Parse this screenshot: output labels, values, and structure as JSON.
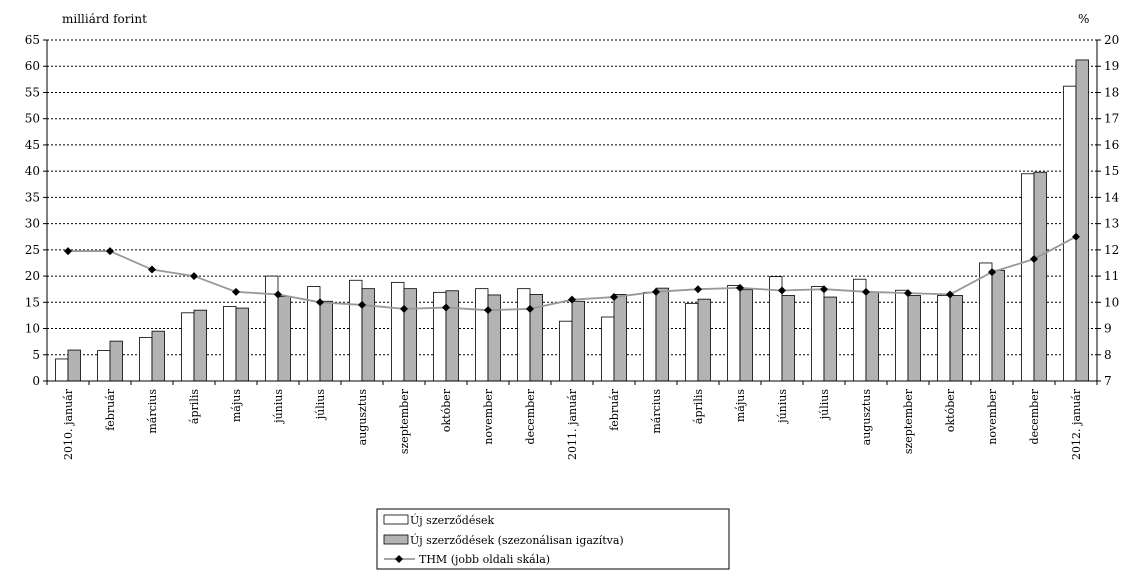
{
  "chart_data": {
    "type": "bar",
    "title": "",
    "ylabel_left": "milliárd forint",
    "ylabel_right": "%",
    "ylim_left": [
      0,
      65
    ],
    "ylim_right": [
      7,
      20
    ],
    "yticks_left": [
      "0",
      "5",
      "10",
      "15",
      "20",
      "25",
      "30",
      "35",
      "40",
      "45",
      "50",
      "55",
      "60",
      "65"
    ],
    "yticks_right": [
      "7",
      "8",
      "9",
      "10",
      "11",
      "12",
      "13",
      "14",
      "15",
      "16",
      "17",
      "18",
      "19",
      "20"
    ],
    "grid": "horizontal dashed",
    "legend_position": "bottom-center",
    "categories": [
      "2010. január",
      "február",
      "március",
      "április",
      "május",
      "június",
      "július",
      "augusztus",
      "szeptember",
      "október",
      "november",
      "december",
      "2011. január",
      "február",
      "március",
      "április",
      "május",
      "június",
      "július",
      "augusztus",
      "szeptember",
      "október",
      "november",
      "december",
      "2012. január"
    ],
    "series": [
      {
        "name": "Új szerződések",
        "type": "bar",
        "axis": "left",
        "color": "#ffffff",
        "values": [
          4.2,
          5.8,
          8.3,
          13.0,
          14.2,
          20.0,
          18.0,
          19.2,
          18.8,
          16.9,
          17.6,
          17.6,
          11.4,
          12.2,
          16.9,
          14.8,
          18.2,
          19.9,
          18.0,
          19.4,
          17.3,
          16.3,
          22.5,
          39.5,
          56.2
        ]
      },
      {
        "name": "Új szerződések (szezonálisan igazítva)",
        "type": "bar",
        "axis": "left",
        "color": "#b3b3b3",
        "values": [
          5.9,
          7.6,
          9.5,
          13.5,
          13.9,
          16.1,
          15.2,
          17.6,
          17.6,
          17.2,
          16.4,
          16.5,
          15.2,
          16.5,
          17.7,
          15.6,
          17.4,
          16.3,
          16.0,
          16.9,
          16.3,
          16.3,
          21.1,
          39.8,
          61.2
        ]
      },
      {
        "name": "THM (jobb oldali skála)",
        "type": "line",
        "axis": "right",
        "color": "#999999",
        "marker_color": "#000000",
        "values": [
          11.95,
          11.95,
          11.25,
          11.0,
          10.4,
          10.3,
          10.0,
          9.9,
          9.75,
          9.8,
          9.7,
          9.75,
          10.1,
          10.2,
          10.4,
          10.5,
          10.55,
          10.45,
          10.5,
          10.4,
          10.35,
          10.3,
          11.15,
          11.65,
          12.5
        ]
      }
    ]
  }
}
